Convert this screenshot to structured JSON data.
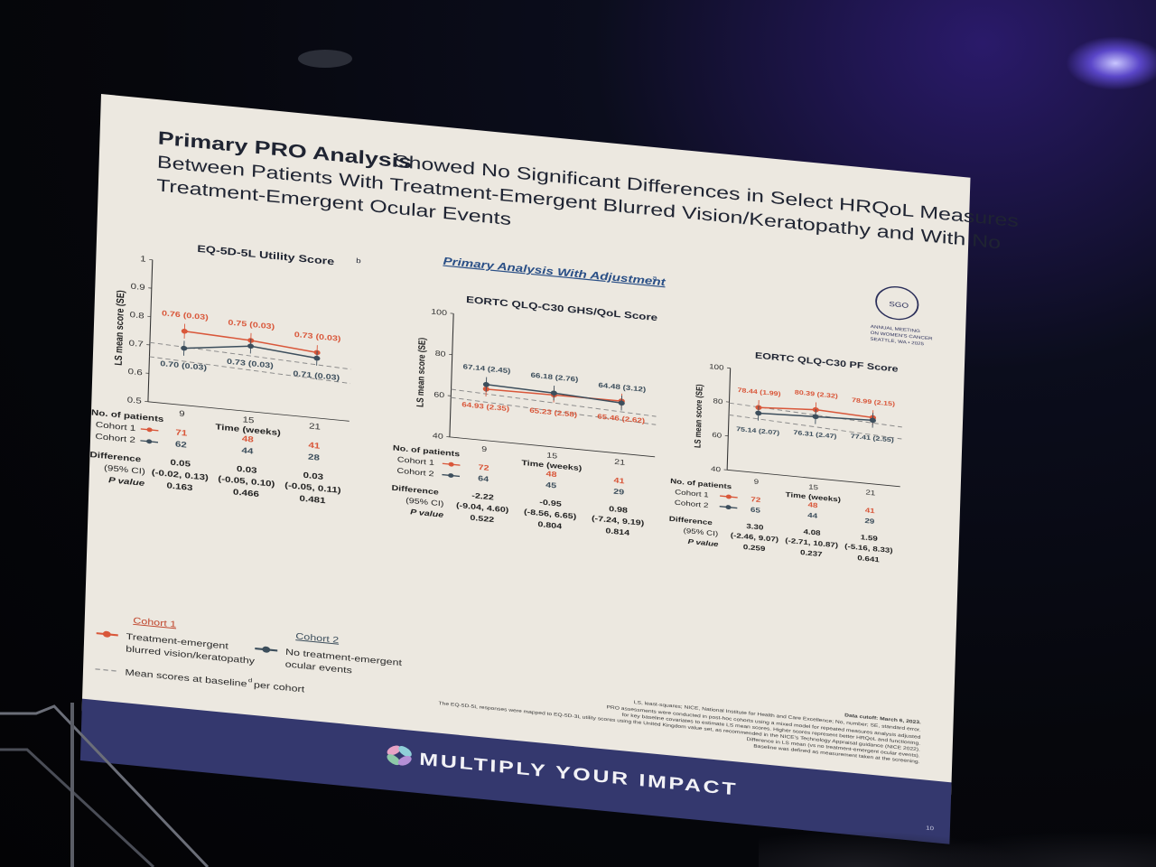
{
  "title": {
    "bold": "Primary PRO Analysis",
    "line1": "Showed No Significant Differences in Select HRQoL Measures",
    "line2": "Between Patients With Treatment-Emergent Blurred Vision/Keratopathy and With No",
    "line3": "Treatment-Emergent Ocular Events"
  },
  "logo": {
    "line1": "ANNUAL MEETING",
    "line2": "ON WOMEN'S CANCER",
    "line3": "SEATTLE, WA • 2025",
    "mark": "SGO"
  },
  "subheading": "Primary Analysis With Adjustment",
  "subheading_sup": "a",
  "ylabel": "LS mean score (SE)",
  "xlabel": "Time (weeks)",
  "row_labels": {
    "patients": "No. of patients",
    "cohort1": "Cohort 1",
    "cohort2": "Cohort 2",
    "difference": "Difference",
    "ci": "(95% CI)",
    "pvalue": "P value"
  },
  "legend": {
    "cohort1_title": "Cohort 1",
    "cohort1_desc1": "Treatment-emergent",
    "cohort1_desc2": "blurred vision/keratopathy",
    "cohort2_title": "Cohort 2",
    "cohort2_desc1": "No treatment-emergent",
    "cohort2_desc2": "ocular events",
    "baseline": "Mean scores at baseline",
    "baseline_sup": "d",
    "baseline_suffix": "per cohort"
  },
  "colors": {
    "cohort1": "#d9573a",
    "cohort2": "#3c4e5c",
    "banner": "#3a3f78"
  },
  "chart_data": [
    {
      "type": "line",
      "title": "EQ-5D-5L Utility Score",
      "title_sup": "b",
      "xlabel": "Time (weeks)",
      "ylabel": "LS mean score (SE)",
      "x": [
        9,
        15,
        21
      ],
      "ylim": [
        0.5,
        1
      ],
      "yticks": [
        "1",
        "0.9",
        "0.8",
        "0.7",
        "0.6",
        "0.5"
      ],
      "series": [
        {
          "name": "Cohort 1",
          "values": [
            0.76,
            0.75,
            0.73
          ],
          "labels": [
            "0.76 (0.03)",
            "0.75 (0.03)",
            "0.73 (0.03)"
          ]
        },
        {
          "name": "Cohort 2",
          "values": [
            0.7,
            0.73,
            0.71
          ],
          "labels": [
            "0.70 (0.03)",
            "0.73 (0.03)",
            "0.71 (0.03)"
          ]
        }
      ],
      "patients_c1": [
        "71",
        "48",
        "41"
      ],
      "patients_c2": [
        "62",
        "44",
        "28"
      ],
      "difference": [
        "0.05",
        "0.03",
        "0.03"
      ],
      "ci": [
        "(-0.02, 0.13)",
        "(-0.05, 0.10)",
        "(-0.05, 0.11)"
      ],
      "pvalue": [
        "0.163",
        "0.466",
        "0.481"
      ]
    },
    {
      "type": "line",
      "title": "EORTC QLQ-C30 GHS/QoL Score",
      "xlabel": "Time (weeks)",
      "ylabel": "LS mean score (SE)",
      "x": [
        9,
        15,
        21
      ],
      "ylim": [
        40,
        100
      ],
      "yticks": [
        "100",
        "80",
        "60",
        "40"
      ],
      "series": [
        {
          "name": "Cohort 1",
          "values": [
            64.93,
            65.23,
            65.46
          ],
          "labels": [
            "64.93 (2.35)",
            "65.23 (2.58)",
            "65.46 (2.62)"
          ]
        },
        {
          "name": "Cohort 2",
          "values": [
            67.14,
            66.18,
            64.48
          ],
          "labels": [
            "67.14 (2.45)",
            "66.18 (2.76)",
            "64.48 (3.12)"
          ]
        }
      ],
      "patients_c1": [
        "72",
        "48",
        "41"
      ],
      "patients_c2": [
        "64",
        "45",
        "29"
      ],
      "difference": [
        "-2.22",
        "-0.95",
        "0.98"
      ],
      "ci": [
        "(-9.04, 4.60)",
        "(-8.56, 6.65)",
        "(-7.24, 9.19)"
      ],
      "pvalue": [
        "0.522",
        "0.804",
        "0.814"
      ]
    },
    {
      "type": "line",
      "title": "EORTC QLQ-C30 PF Score",
      "xlabel": "Time (weeks)",
      "ylabel": "LS mean score (SE)",
      "x": [
        9,
        15,
        21
      ],
      "ylim": [
        40,
        100
      ],
      "yticks": [
        "100",
        "80",
        "60",
        "40"
      ],
      "series": [
        {
          "name": "Cohort 1",
          "values": [
            78.44,
            80.39,
            78.99
          ],
          "labels": [
            "78.44 (1.99)",
            "80.39 (2.32)",
            "78.99 (2.15)"
          ]
        },
        {
          "name": "Cohort 2",
          "values": [
            75.14,
            76.31,
            77.41
          ],
          "labels": [
            "75.14 (2.07)",
            "76.31 (2.47)",
            "77.41 (2.55)"
          ]
        }
      ],
      "patients_c1": [
        "72",
        "48",
        "41"
      ],
      "patients_c2": [
        "65",
        "44",
        "29"
      ],
      "difference": [
        "3.30",
        "4.08",
        "1.59"
      ],
      "ci": [
        "(-2.46, 9.07)",
        "(-2.71, 10.87)",
        "(-5.16, 8.33)"
      ],
      "pvalue": [
        "0.259",
        "0.237",
        "0.641"
      ]
    }
  ],
  "footnotes": {
    "cutoff": "Data cutoff: March 6, 2023.",
    "abbrev": "LS, least-squares; NICE, National Institute for Health and Care Excellence; No, number; SE, standard error.",
    "a": "PRO assessments were conducted in post-hoc cohorts using a mixed model for repeated measures analysis adjusted",
    "a2": "for key baseline covariates to estimate LS mean scores. Higher scores represent better HRQoL and functioning.",
    "b": "The EQ-5D-5L responses were mapped to EQ-5D-3L utility scores using the United Kingdom value set, as recommended in the NICE's Technology Appraisal guidance (NICE 2022).",
    "c": "Difference in LS mean (vs no treatment-emergent ocular events).",
    "d": "Baseline was defined as measurement taken at the screening."
  },
  "banner": {
    "text": "MULTIPLY YOUR IMPACT",
    "page": "10"
  }
}
